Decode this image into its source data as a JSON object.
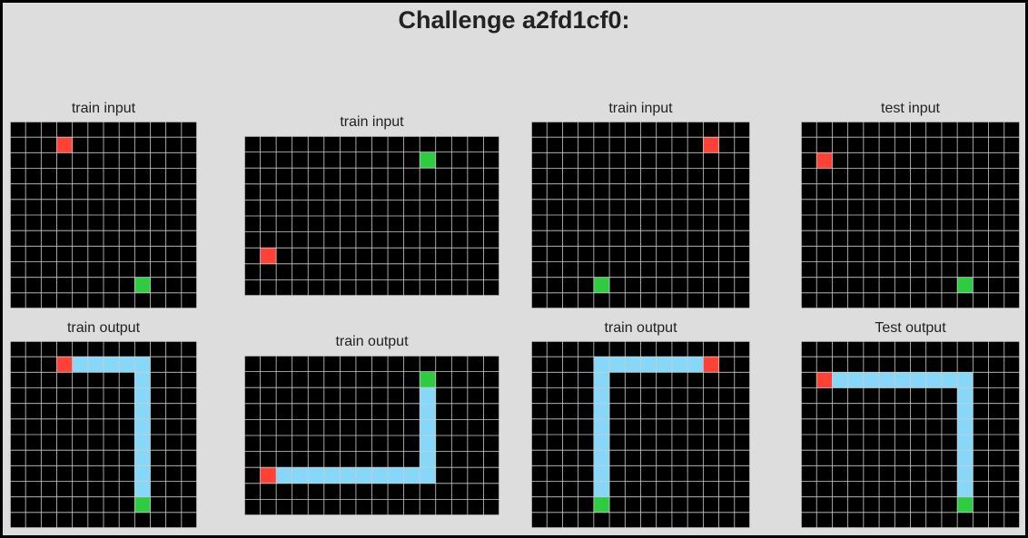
{
  "title": "Challenge a2fd1cf0:",
  "colors": {
    "0": "#000000",
    "2": "#ff4136",
    "3": "#2ecc40",
    "8": "#87d8f8",
    "gridline": "#cccccc"
  },
  "panels": [
    {
      "label": "train input",
      "rows": 12,
      "cols": 12,
      "cells": [
        {
          "r": 1,
          "c": 3,
          "v": 2
        },
        {
          "r": 10,
          "c": 8,
          "v": 3
        }
      ],
      "path": []
    },
    {
      "label": "train input",
      "rows": 10,
      "cols": 16,
      "cells": [
        {
          "r": 1,
          "c": 11,
          "v": 3
        },
        {
          "r": 7,
          "c": 1,
          "v": 2
        }
      ],
      "path": []
    },
    {
      "label": "train input",
      "rows": 12,
      "cols": 14,
      "cells": [
        {
          "r": 1,
          "c": 11,
          "v": 2
        },
        {
          "r": 10,
          "c": 4,
          "v": 3
        }
      ],
      "path": []
    },
    {
      "label": "test input",
      "rows": 12,
      "cols": 14,
      "cells": [
        {
          "r": 2,
          "c": 1,
          "v": 2
        },
        {
          "r": 10,
          "c": 10,
          "v": 3
        }
      ],
      "path": []
    },
    {
      "label": "train output",
      "rows": 12,
      "cols": 12,
      "cells": [
        {
          "r": 1,
          "c": 3,
          "v": 2
        },
        {
          "r": 10,
          "c": 8,
          "v": 3
        }
      ],
      "path": [
        {
          "r": 1,
          "c": 3
        },
        {
          "r": 1,
          "c": 8
        },
        {
          "r": 10,
          "c": 8
        }
      ]
    },
    {
      "label": "train output",
      "rows": 10,
      "cols": 16,
      "cells": [
        {
          "r": 1,
          "c": 11,
          "v": 3
        },
        {
          "r": 7,
          "c": 1,
          "v": 2
        }
      ],
      "path": [
        {
          "r": 7,
          "c": 1
        },
        {
          "r": 7,
          "c": 11
        },
        {
          "r": 1,
          "c": 11
        }
      ]
    },
    {
      "label": "train output",
      "rows": 12,
      "cols": 14,
      "cells": [
        {
          "r": 1,
          "c": 11,
          "v": 2
        },
        {
          "r": 10,
          "c": 4,
          "v": 3
        }
      ],
      "path": [
        {
          "r": 1,
          "c": 11
        },
        {
          "r": 1,
          "c": 4
        },
        {
          "r": 10,
          "c": 4
        }
      ]
    },
    {
      "label": "Test output",
      "rows": 12,
      "cols": 14,
      "cells": [
        {
          "r": 2,
          "c": 1,
          "v": 2
        },
        {
          "r": 10,
          "c": 10,
          "v": 3
        }
      ],
      "path": [
        {
          "r": 2,
          "c": 1
        },
        {
          "r": 2,
          "c": 10
        },
        {
          "r": 10,
          "c": 10
        }
      ]
    }
  ]
}
